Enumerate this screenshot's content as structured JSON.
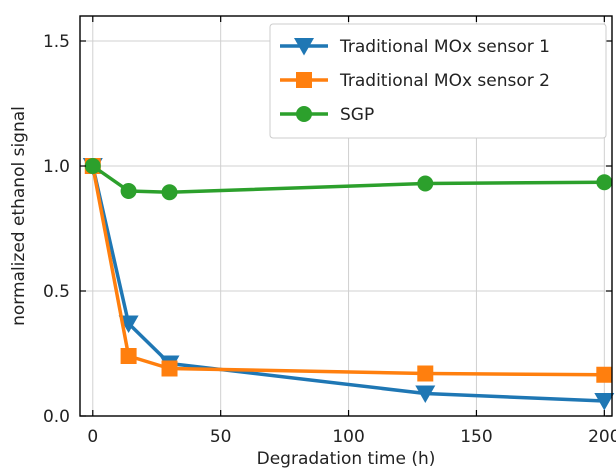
{
  "chart_data": {
    "type": "line",
    "title": "",
    "xlabel": "Degradation time (h)",
    "ylabel": "normalized ethanol signal",
    "xlim": [
      -5,
      203
    ],
    "ylim": [
      0,
      1.6
    ],
    "xticks": [
      0,
      50,
      100,
      150,
      200
    ],
    "xtick_labels": [
      "0",
      "50",
      "100",
      "150",
      "200"
    ],
    "yticks": [
      0.0,
      0.5,
      1.0,
      1.5
    ],
    "ytick_labels": [
      "0.0",
      "0.5",
      "1.0",
      "1.5"
    ],
    "grid": true,
    "legend_position": "top-right",
    "x": [
      0,
      14,
      30,
      130,
      200
    ],
    "series": [
      {
        "name": "Traditional MOx sensor 1",
        "color": "#1f77b4",
        "marker": "triangle-down",
        "values": [
          1.0,
          0.37,
          0.21,
          0.09,
          0.06
        ]
      },
      {
        "name": "Traditional MOx sensor 2",
        "color": "#ff7f0e",
        "marker": "square",
        "values": [
          1.0,
          0.24,
          0.19,
          0.17,
          0.165
        ]
      },
      {
        "name": "SGP",
        "color": "#2ca02c",
        "marker": "circle",
        "values": [
          1.0,
          0.9,
          0.895,
          0.93,
          0.935
        ]
      }
    ]
  }
}
